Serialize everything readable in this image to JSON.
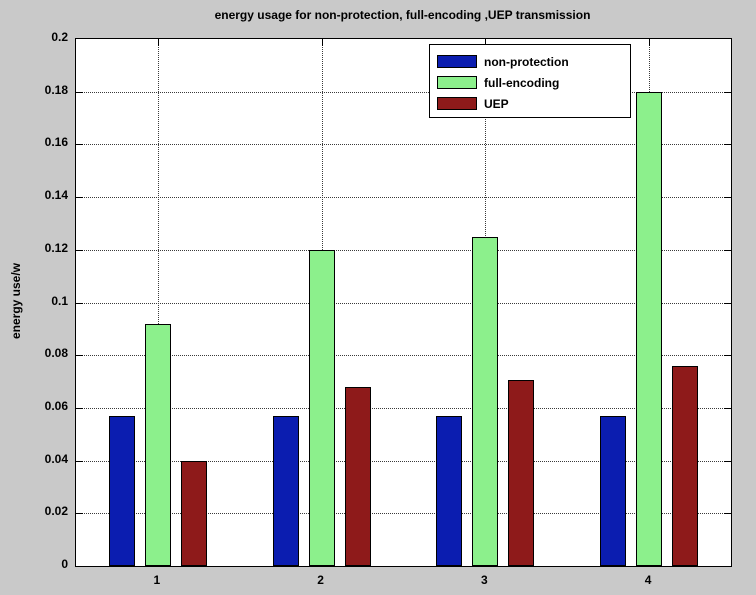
{
  "figure": {
    "background": "#c9c9c9"
  },
  "chart_data": {
    "type": "bar",
    "title": "energy usage for non-protection, full-encoding ,UEP transmission",
    "ylabel": "energy use/w",
    "xlabel": "",
    "categories": [
      "1",
      "2",
      "3",
      "4"
    ],
    "series": [
      {
        "name": "non-protection",
        "color": "#0b1db0",
        "values": [
          0.057,
          0.057,
          0.057,
          0.057
        ]
      },
      {
        "name": "full-encoding",
        "color": "#8cf08c",
        "values": [
          0.092,
          0.12,
          0.125,
          0.18
        ]
      },
      {
        "name": "UEP",
        "color": "#8e1a1a",
        "values": [
          0.04,
          0.068,
          0.0705,
          0.076
        ]
      }
    ],
    "ylim": [
      0,
      0.2
    ],
    "ytick_labels": [
      "0",
      "0.02",
      "0.04",
      "0.06",
      "0.08",
      "0.1",
      "0.12",
      "0.14",
      "0.16",
      "0.18",
      "0.2"
    ],
    "grid": true,
    "legend": {
      "position": "top-center",
      "entries": [
        "non-protection",
        "full-encoding",
        "UEP"
      ]
    }
  }
}
